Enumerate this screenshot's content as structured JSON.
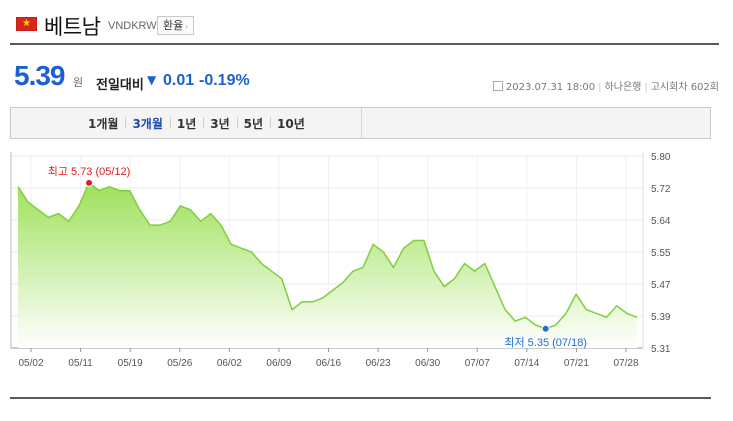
{
  "header": {
    "country": "베트남",
    "code": "VNDKRW",
    "exchange_button": "환율",
    "exchange_arrow": "›",
    "flag_icon": "vietnam-flag-icon"
  },
  "price": {
    "value": "5.39",
    "unit": "원",
    "compare_label": "전일대비",
    "direction_icon": "down-triangle-icon",
    "direction_glyph": "▼",
    "change": "0.01",
    "change_pct": "-0.19%"
  },
  "meta": {
    "datetime": "2023.07.31 18:00",
    "bank": "하나은행",
    "notice": "고시회차 602회"
  },
  "tabs": [
    {
      "label": "1개월",
      "active": false
    },
    {
      "label": "3개월",
      "active": true
    },
    {
      "label": "1년",
      "active": false
    },
    {
      "label": "3년",
      "active": false
    },
    {
      "label": "5년",
      "active": false
    },
    {
      "label": "10년",
      "active": false
    }
  ],
  "colors": {
    "price_blue": "#1c61d4",
    "line_green": "#7ecf3c",
    "fill_green_top": "#9ee05a",
    "high_red": "#e01f1f",
    "low_blue": "#1f6fd1"
  },
  "chart_data": {
    "type": "area",
    "x_ticks": [
      "05/02",
      "05/11",
      "05/19",
      "05/26",
      "06/02",
      "06/09",
      "06/16",
      "06/23",
      "06/30",
      "07/07",
      "07/14",
      "07/21",
      "07/28"
    ],
    "y_ticks": [
      "5.80",
      "5.72",
      "5.64",
      "5.55",
      "5.47",
      "5.39",
      "5.31"
    ],
    "ylim": [
      5.3,
      5.8
    ],
    "grid": true,
    "series": [
      {
        "values": [
          5.72,
          5.68,
          5.66,
          5.64,
          5.65,
          5.63,
          5.67,
          5.73,
          5.71,
          5.72,
          5.71,
          5.71,
          5.66,
          5.62,
          5.62,
          5.63,
          5.67,
          5.66,
          5.63,
          5.65,
          5.62,
          5.57,
          5.56,
          5.55,
          5.52,
          5.5,
          5.48,
          5.4,
          5.42,
          5.42,
          5.43,
          5.45,
          5.47,
          5.5,
          5.51,
          5.57,
          5.55,
          5.51,
          5.56,
          5.58,
          5.58,
          5.5,
          5.46,
          5.48,
          5.52,
          5.5,
          5.52,
          5.46,
          5.4,
          5.37,
          5.38,
          5.36,
          5.35,
          5.36,
          5.39,
          5.44,
          5.4,
          5.39,
          5.38,
          5.41,
          5.39,
          5.38
        ]
      }
    ],
    "annotations": [
      {
        "label": "최고",
        "value": "5.73",
        "date": "(05/12)",
        "index": 7,
        "kind": "high"
      },
      {
        "label": "최저",
        "value": "5.35",
        "date": "(07/18)",
        "index": 52,
        "kind": "low"
      }
    ]
  }
}
